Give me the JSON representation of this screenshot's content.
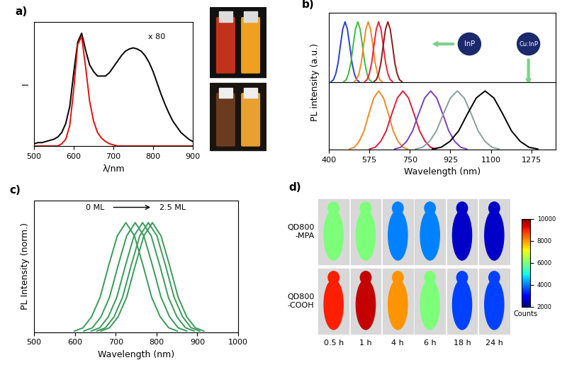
{
  "chart_data": [
    {
      "type": "line",
      "title": "a)",
      "xlabel": "λ/nm",
      "ylabel": "I",
      "annotations": [
        "x 80"
      ],
      "x": [
        500,
        510,
        520,
        530,
        540,
        550,
        560,
        570,
        580,
        590,
        600,
        610,
        620,
        630,
        640,
        650,
        660,
        670,
        680,
        690,
        700,
        710,
        720,
        730,
        740,
        750,
        760,
        770,
        780,
        790,
        800,
        810,
        820,
        830,
        840,
        850,
        860,
        870,
        880,
        890,
        900
      ],
      "series": [
        {
          "color": "#000000",
          "values": [
            0.02,
            0.03,
            0.03,
            0.04,
            0.05,
            0.06,
            0.08,
            0.12,
            0.2,
            0.35,
            0.65,
            0.92,
            1.0,
            0.85,
            0.72,
            0.66,
            0.62,
            0.62,
            0.62,
            0.65,
            0.7,
            0.75,
            0.8,
            0.84,
            0.86,
            0.87,
            0.86,
            0.84,
            0.8,
            0.74,
            0.66,
            0.56,
            0.46,
            0.37,
            0.29,
            0.22,
            0.17,
            0.12,
            0.09,
            0.06,
            0.04
          ]
        },
        {
          "color": "#e01010",
          "values": [
            0,
            0,
            0,
            0,
            0,
            0,
            0,
            0.02,
            0.06,
            0.18,
            0.5,
            0.9,
            0.97,
            0.7,
            0.4,
            0.22,
            0.12,
            0.07,
            0.04,
            0.02,
            0.01,
            0,
            0,
            0,
            0,
            0,
            0,
            0,
            0,
            0,
            0,
            0,
            0,
            0,
            0,
            0,
            0,
            0,
            0,
            0,
            0
          ]
        }
      ],
      "xlim": [
        500,
        900
      ],
      "xticks": [
        500,
        600,
        700,
        800,
        900
      ],
      "ylim": [
        0,
        1.1
      ],
      "tick_labels": "x"
    },
    {
      "type": "line",
      "title": "b)",
      "ylabel": "PL intensity (a.u.)",
      "annotations": [
        "InP",
        "Cu:InP"
      ],
      "series": [
        {
          "color": "#2b3fd1",
          "x": [
            410,
            420,
            430,
            440,
            450,
            460,
            470,
            480,
            490,
            500,
            510,
            520,
            530
          ],
          "values": [
            0.01,
            0.04,
            0.14,
            0.32,
            0.61,
            0.88,
            1.0,
            0.88,
            0.61,
            0.32,
            0.14,
            0.04,
            0.01
          ]
        },
        {
          "color": "#3dbb3d",
          "x": [
            465,
            475,
            485,
            495,
            505,
            515,
            525,
            535,
            545,
            555,
            565,
            575,
            585
          ],
          "values": [
            0.01,
            0.04,
            0.14,
            0.32,
            0.61,
            0.88,
            1.0,
            0.88,
            0.61,
            0.32,
            0.14,
            0.04,
            0.01
          ]
        },
        {
          "color": "#f08a24",
          "x": [
            510,
            520,
            530,
            540,
            550,
            560,
            570,
            580,
            590,
            600,
            610,
            620,
            630
          ],
          "values": [
            0.01,
            0.04,
            0.14,
            0.32,
            0.61,
            0.88,
            1.0,
            0.88,
            0.61,
            0.32,
            0.14,
            0.04,
            0.01
          ]
        },
        {
          "color": "#e8243c",
          "x": [
            555,
            565,
            575,
            585,
            595,
            605,
            615,
            625,
            635,
            645,
            655,
            665,
            675
          ],
          "values": [
            0.01,
            0.04,
            0.14,
            0.32,
            0.61,
            0.88,
            1.0,
            0.88,
            0.61,
            0.32,
            0.14,
            0.04,
            0.01
          ]
        },
        {
          "color": "#8b1a1a",
          "x": [
            595,
            605,
            615,
            625,
            635,
            645,
            655,
            665,
            675,
            685,
            695,
            705,
            715
          ],
          "values": [
            0.01,
            0.04,
            0.14,
            0.32,
            0.61,
            0.88,
            1.0,
            0.88,
            0.61,
            0.32,
            0.14,
            0.04,
            0.01
          ]
        }
      ],
      "xlim": [
        400,
        1380
      ],
      "ylim": [
        0,
        1.15
      ],
      "tick_labels": false
    },
    {
      "type": "line",
      "xlabel": "Wavelength (nm)",
      "series": [
        {
          "color": "#f08a24",
          "x": [
            489,
            510,
            531,
            552,
            573,
            594,
            615,
            636,
            657,
            678,
            699,
            720,
            741
          ],
          "values": [
            0.01,
            0.04,
            0.14,
            0.32,
            0.61,
            0.88,
            1.0,
            0.88,
            0.61,
            0.32,
            0.14,
            0.04,
            0.01
          ]
        },
        {
          "color": "#d81e3c",
          "x": [
            576,
            600,
            624,
            648,
            672,
            696,
            720,
            744,
            768,
            792,
            816,
            840,
            864
          ],
          "values": [
            0.01,
            0.04,
            0.14,
            0.32,
            0.61,
            0.88,
            1.0,
            0.88,
            0.61,
            0.32,
            0.14,
            0.04,
            0.01
          ]
        },
        {
          "color": "#7a3fc0",
          "x": [
            684,
            710,
            736,
            762,
            788,
            814,
            840,
            866,
            892,
            918,
            944,
            970,
            996
          ],
          "values": [
            0.01,
            0.04,
            0.14,
            0.32,
            0.61,
            0.88,
            1.0,
            0.88,
            0.61,
            0.32,
            0.14,
            0.04,
            0.01
          ]
        },
        {
          "color": "#8c9c9c",
          "x": [
            775,
            805,
            835,
            865,
            895,
            925,
            955,
            985,
            1015,
            1045,
            1075,
            1105,
            1135
          ],
          "values": [
            0.01,
            0.04,
            0.14,
            0.32,
            0.61,
            0.88,
            1.0,
            0.88,
            0.61,
            0.32,
            0.14,
            0.04,
            0.01
          ]
        },
        {
          "color": "#000000",
          "x": [
            847,
            885,
            923,
            961,
            999,
            1037,
            1075,
            1113,
            1151,
            1189,
            1227,
            1265,
            1303
          ],
          "values": [
            0.01,
            0.04,
            0.14,
            0.32,
            0.61,
            0.88,
            1.0,
            0.88,
            0.61,
            0.32,
            0.14,
            0.04,
            0.01
          ]
        }
      ],
      "xlim": [
        400,
        1380
      ],
      "xticks": [
        400,
        575,
        750,
        925,
        1100,
        1275
      ],
      "ylim": [
        0,
        1.15
      ],
      "tick_labels": "x"
    },
    {
      "type": "line",
      "title": "c)",
      "xlabel": "Wavelength (nm)",
      "ylabel": "PL Intensity (norm.)",
      "annotations": [
        "0 ML",
        "2.5 ML"
      ],
      "series": [
        {
          "color": "#3a9a5a",
          "x": [
            599,
            620,
            641,
            662,
            683,
            704,
            725,
            746,
            767,
            788,
            809,
            830,
            851
          ],
          "values": [
            0.01,
            0.04,
            0.14,
            0.32,
            0.61,
            0.88,
            1.0,
            0.88,
            0.61,
            0.32,
            0.14,
            0.04,
            0.01
          ]
        },
        {
          "color": "#3a9a5a",
          "x": [
            622,
            643,
            664,
            685,
            706,
            727,
            748,
            769,
            790,
            811,
            832,
            853,
            874
          ],
          "values": [
            0.01,
            0.04,
            0.14,
            0.32,
            0.61,
            0.88,
            1.0,
            0.88,
            0.61,
            0.32,
            0.14,
            0.04,
            0.01
          ]
        },
        {
          "color": "#3a9a5a",
          "x": [
            640,
            661,
            682,
            703,
            724,
            745,
            766,
            787,
            808,
            829,
            850,
            871,
            892
          ],
          "values": [
            0.01,
            0.04,
            0.14,
            0.32,
            0.61,
            0.88,
            1.0,
            0.88,
            0.61,
            0.32,
            0.14,
            0.04,
            0.01
          ]
        },
        {
          "color": "#3a9a5a",
          "x": [
            654,
            675,
            696,
            717,
            738,
            759,
            780,
            801,
            822,
            843,
            864,
            885,
            906
          ],
          "values": [
            0.01,
            0.04,
            0.14,
            0.32,
            0.61,
            0.88,
            1.0,
            0.88,
            0.61,
            0.32,
            0.14,
            0.04,
            0.01
          ]
        },
        {
          "color": "#3a9a5a",
          "x": [
            664,
            685,
            706,
            727,
            748,
            769,
            790,
            811,
            832,
            853,
            874,
            895,
            916
          ],
          "values": [
            0.01,
            0.04,
            0.14,
            0.32,
            0.61,
            0.88,
            1.0,
            0.88,
            0.61,
            0.32,
            0.14,
            0.04,
            0.01
          ]
        }
      ],
      "xlim": [
        500,
        1000
      ],
      "xticks": [
        500,
        600,
        700,
        800,
        900,
        1000
      ],
      "ylim": [
        0,
        1.2
      ],
      "tick_labels": "x"
    },
    {
      "type": "image_grid",
      "title": "d)",
      "columns": [
        "0.5 h",
        "1 h",
        "4 h",
        "6 h",
        "18 h",
        "24 h"
      ],
      "rows": [
        {
          "label": "QD800\n-MPA",
          "values": [
            6000,
            6000,
            4000,
            4000,
            2500,
            2500
          ]
        },
        {
          "label": "QD800\n-COOH",
          "values": [
            9000,
            9500,
            8000,
            6000,
            3500,
            3500
          ]
        }
      ],
      "colorbar": {
        "range": [
          2000,
          10000
        ],
        "ticks": [
          2000,
          4000,
          6000,
          8000,
          10000
        ],
        "label": "Counts"
      }
    }
  ]
}
